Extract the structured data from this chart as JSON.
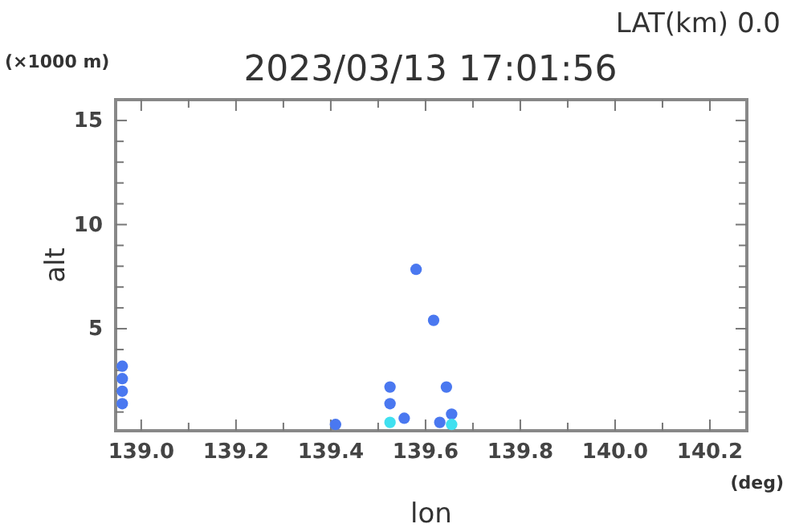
{
  "chart_data": {
    "type": "scatter",
    "title": "2023/03/13 17:01:56",
    "xlabel": "lon",
    "ylabel": "alt",
    "annotations": [
      "LAT(km) 0.0",
      "(×1000 m)",
      "(deg)"
    ],
    "xlim": [
      138.946,
      140.278
    ],
    "xticks": [
      {
        "value": 139.0,
        "label": "139.0"
      },
      {
        "value": 139.1,
        "label": null
      },
      {
        "value": 139.2,
        "label": "139.2"
      },
      {
        "value": 139.3,
        "label": null
      },
      {
        "value": 139.4,
        "label": "139.4"
      },
      {
        "value": 139.5,
        "label": null
      },
      {
        "value": 139.6,
        "label": "139.6"
      },
      {
        "value": 139.7,
        "label": null
      },
      {
        "value": 139.8,
        "label": "139.8"
      },
      {
        "value": 139.9,
        "label": null
      },
      {
        "value": 140.0,
        "label": "140.0"
      },
      {
        "value": 140.1,
        "label": null
      },
      {
        "value": 140.2,
        "label": "140.2"
      }
    ],
    "ylim": [
      0.1,
      16
    ],
    "yticks": [
      {
        "value": 1,
        "label": null
      },
      {
        "value": 2,
        "label": null
      },
      {
        "value": 3,
        "label": null
      },
      {
        "value": 4,
        "label": null
      },
      5,
      {
        "value": 6,
        "label": null
      },
      {
        "value": 7,
        "label": null
      },
      {
        "value": 8,
        "label": null
      },
      {
        "value": 9,
        "label": null
      },
      10,
      {
        "value": 11,
        "label": null
      },
      {
        "value": 12,
        "label": null
      },
      {
        "value": 13,
        "label": null
      },
      {
        "value": 14,
        "label": null
      },
      15
    ],
    "grid": false,
    "marker": "circle",
    "series": [
      {
        "color": "#4a78f0",
        "x": [
          138.96,
          138.96,
          138.96,
          138.96,
          139.41,
          139.525,
          139.525,
          139.555,
          139.58,
          139.617,
          139.644,
          139.63,
          139.655
        ],
        "values": [
          3.2,
          2.6,
          2.0,
          1.4,
          0.4,
          2.2,
          1.4,
          0.7,
          7.85,
          5.4,
          2.2,
          0.5,
          0.9
        ]
      },
      {
        "color": "#40e0f0",
        "x": [
          139.525,
          139.655
        ],
        "values": [
          0.5,
          0.4
        ]
      }
    ]
  }
}
